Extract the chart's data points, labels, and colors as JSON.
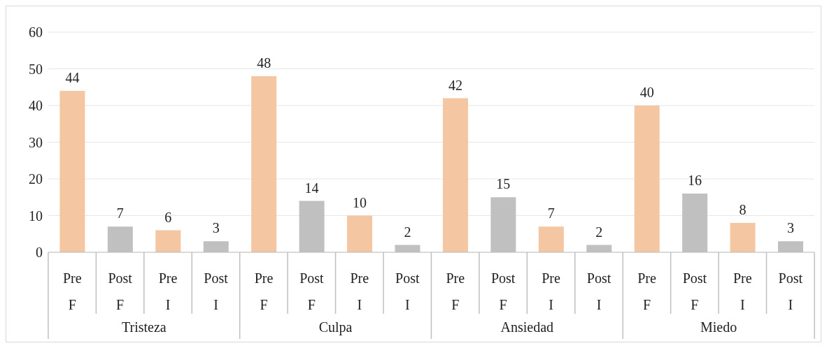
{
  "chart_data": {
    "type": "bar",
    "categories": [
      "Pre F",
      "Post F",
      "Pre I",
      "Post I",
      "Pre F",
      "Post F",
      "Pre I",
      "Post I",
      "Pre F",
      "Post F",
      "Pre I",
      "Post I",
      "Pre F",
      "Post F",
      "Pre I",
      "Post I"
    ],
    "values": [
      44,
      7,
      6,
      3,
      48,
      14,
      10,
      2,
      42,
      15,
      7,
      2,
      40,
      16,
      8,
      3
    ],
    "colors": [
      "#f5c6a2",
      "#c0c0c0",
      "#f5c6a2",
      "#c0c0c0",
      "#f5c6a2",
      "#c0c0c0",
      "#f5c6a2",
      "#c0c0c0",
      "#f5c6a2",
      "#c0c0c0",
      "#f5c6a2",
      "#c0c0c0",
      "#f5c6a2",
      "#c0c0c0",
      "#f5c6a2",
      "#c0c0c0"
    ],
    "annotations": [
      "Tristeza",
      "Culpa",
      "Ansiedad",
      "Miedo"
    ],
    "ylim": [
      0,
      60
    ],
    "yticks": [
      0,
      10,
      20,
      30,
      40,
      50,
      60
    ],
    "grid": "y",
    "data_labels": true
  }
}
